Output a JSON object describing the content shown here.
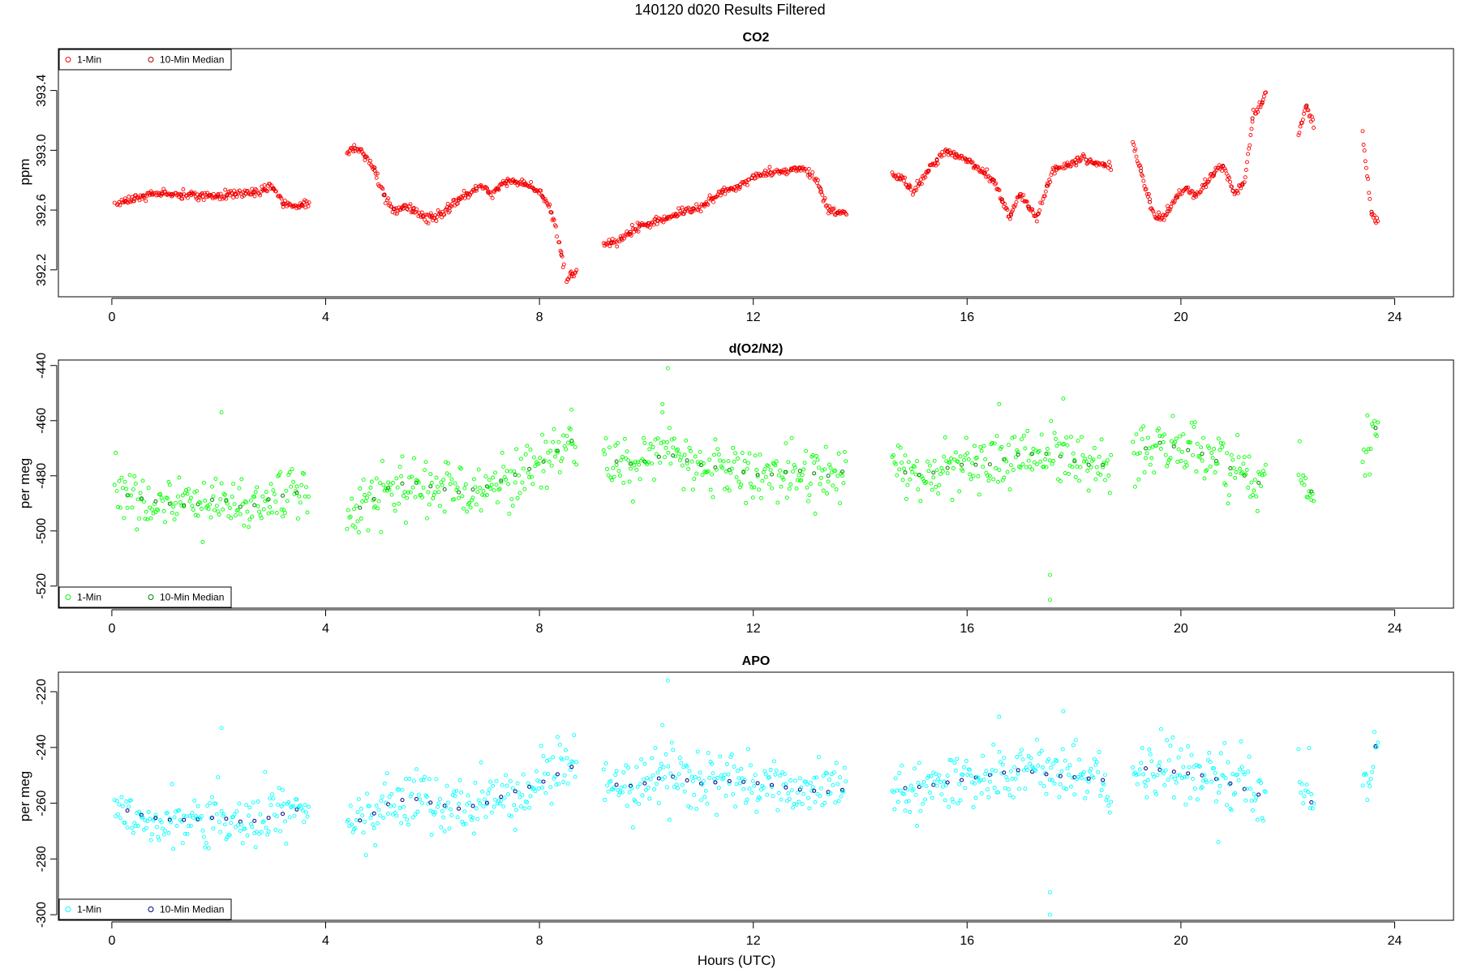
{
  "figure": {
    "title": "140120   d020   Results Filtered",
    "xlabel": "Hours (UTC)"
  },
  "chart_data": [
    {
      "type": "scatter",
      "title": "CO2",
      "xlabel": "",
      "ylabel": "ppm",
      "xlim": [
        -1.0,
        25.1
      ],
      "ylim": [
        392.02,
        393.68
      ],
      "xticks": [
        0,
        4,
        8,
        12,
        16,
        20,
        24
      ],
      "yticks": [
        392.2,
        392.6,
        393.0,
        393.4
      ],
      "ytick_labels": [
        "392.2",
        "392.6",
        "393.0",
        "393.4"
      ],
      "legend": {
        "placement": "top-left",
        "entries": [
          "1-Min",
          "10-Min Median"
        ]
      },
      "colors": {
        "one_min": "#ff0000",
        "median": "#b30000"
      },
      "noise": 0.015,
      "segments": [
        {
          "x": [
            0.05,
            0.3,
            0.6,
            1.0,
            1.5,
            2.0,
            2.5,
            2.8,
            3.0,
            3.2,
            3.5,
            3.7
          ],
          "y": [
            392.64,
            392.66,
            392.7,
            392.71,
            392.7,
            392.7,
            392.71,
            392.73,
            392.76,
            392.64,
            392.62,
            392.68
          ]
        },
        {
          "x": [
            4.4,
            4.6,
            4.9,
            5.1,
            5.3,
            5.6,
            5.9,
            6.2,
            6.5,
            6.9,
            7.1,
            7.4,
            7.7,
            8.0,
            8.2,
            8.35,
            8.5,
            8.7
          ],
          "y": [
            392.99,
            393.02,
            392.88,
            392.7,
            392.6,
            392.62,
            392.54,
            392.58,
            392.67,
            392.76,
            392.7,
            392.8,
            392.78,
            392.72,
            392.62,
            392.4,
            392.14,
            392.2
          ]
        },
        {
          "x": [
            9.2,
            9.5,
            9.8,
            10.1,
            10.4,
            10.8,
            11.1,
            11.4,
            11.7,
            12.0,
            12.3,
            12.6,
            12.9,
            13.2,
            13.4,
            13.6,
            13.75
          ],
          "y": [
            392.36,
            392.4,
            392.48,
            392.52,
            392.55,
            392.6,
            392.64,
            392.72,
            392.76,
            392.82,
            392.85,
            392.86,
            392.88,
            392.8,
            392.6,
            392.58,
            392.58
          ]
        },
        {
          "x": [
            14.6,
            14.8,
            15.0,
            15.3,
            15.6,
            15.9,
            16.2,
            16.5,
            16.8,
            17.0,
            17.3,
            17.6,
            17.9,
            18.2,
            18.5,
            18.7
          ],
          "y": [
            392.85,
            392.8,
            392.72,
            392.88,
            393.0,
            392.96,
            392.88,
            392.8,
            392.55,
            392.7,
            392.55,
            392.86,
            392.9,
            392.94,
            392.9,
            392.9
          ]
        },
        {
          "x": [
            19.1,
            19.3,
            19.5,
            19.7,
            19.9,
            20.1,
            20.3,
            20.6,
            20.8,
            21.0,
            21.2,
            21.35,
            21.5,
            21.6
          ],
          "y": [
            393.05,
            392.8,
            392.55,
            392.56,
            392.68,
            392.75,
            392.7,
            392.84,
            392.9,
            392.7,
            392.8,
            393.25,
            393.3,
            393.4
          ]
        },
        {
          "x": [
            22.2,
            22.35,
            22.5
          ],
          "y": [
            393.1,
            393.3,
            393.15
          ]
        },
        {
          "x": [
            23.4,
            23.55,
            23.7
          ],
          "y": [
            393.1,
            392.6,
            392.5
          ]
        }
      ]
    },
    {
      "type": "scatter",
      "title": "d(O2/N2)",
      "xlabel": "",
      "ylabel": "per meg",
      "xlim": [
        -1.0,
        25.1
      ],
      "ylim": [
        -528.0,
        -438.0
      ],
      "xticks": [
        0,
        4,
        8,
        12,
        16,
        20,
        24
      ],
      "yticks": [
        -520,
        -500,
        -480,
        -460,
        -440
      ],
      "ytick_labels": [
        "-520",
        "-500",
        "-480",
        "-460",
        "-440"
      ],
      "legend": {
        "placement": "bottom-left",
        "entries": [
          "1-Min",
          "10-Min Median"
        ]
      },
      "colors": {
        "one_min": "#00ff00",
        "median": "#008000"
      },
      "noise": 5,
      "segments": [
        {
          "x": [
            0.05,
            0.5,
            1.0,
            1.5,
            2.0,
            2.5,
            3.0,
            3.5,
            3.7
          ],
          "y": [
            -486,
            -488,
            -490,
            -491,
            -488,
            -492,
            -488,
            -486,
            -490
          ]
        },
        {
          "x": [
            4.4,
            4.8,
            5.2,
            5.6,
            6.0,
            6.5,
            7.0,
            7.5,
            8.0,
            8.4,
            8.7
          ],
          "y": [
            -494,
            -490,
            -484,
            -482,
            -484,
            -486,
            -484,
            -480,
            -476,
            -470,
            -466
          ]
        },
        {
          "x": [
            9.2,
            9.8,
            10.4,
            11.0,
            11.6,
            12.2,
            12.8,
            13.4,
            13.75
          ],
          "y": [
            -474,
            -476,
            -472,
            -476,
            -478,
            -480,
            -478,
            -480,
            -478
          ]
        },
        {
          "x": [
            14.6,
            15.2,
            15.8,
            16.4,
            17.0,
            17.6,
            18.2,
            18.7
          ],
          "y": [
            -478,
            -480,
            -476,
            -476,
            -472,
            -472,
            -476,
            -476
          ]
        },
        {
          "x": [
            19.1,
            19.6,
            20.0,
            20.4,
            20.8,
            21.2,
            21.6
          ],
          "y": [
            -472,
            -468,
            -470,
            -472,
            -476,
            -480,
            -484
          ]
        },
        {
          "x": [
            22.2,
            22.35,
            22.5
          ],
          "y": [
            -476,
            -482,
            -488
          ]
        },
        {
          "x": [
            23.4,
            23.55,
            23.7
          ],
          "y": [
            -468,
            -470,
            -458
          ]
        }
      ],
      "outliers": {
        "x": [
          10.4,
          17.55,
          17.55,
          17.8,
          2.05,
          8.6,
          10.3,
          16.6
        ],
        "y": [
          -441,
          -516,
          -525,
          -452,
          -457,
          -456,
          -454,
          -454
        ]
      }
    },
    {
      "type": "scatter",
      "title": "APO",
      "xlabel": "Hours (UTC)",
      "ylabel": "per meg",
      "xlim": [
        -1.0,
        25.1
      ],
      "ylim": [
        -302.0,
        -213.0
      ],
      "xticks": [
        0,
        4,
        8,
        12,
        16,
        20,
        24
      ],
      "yticks": [
        -300,
        -280,
        -260,
        -240,
        -220
      ],
      "ytick_labels": [
        "-300",
        "-280",
        "-260",
        "-240",
        "-220"
      ],
      "legend": {
        "placement": "bottom-left",
        "entries": [
          "1-Min",
          "10-Min Median"
        ]
      },
      "colors": {
        "one_min": "#00ffff",
        "median": "#000080"
      },
      "noise": 5,
      "segments": [
        {
          "x": [
            0.05,
            0.5,
            1.0,
            1.5,
            2.0,
            2.5,
            3.0,
            3.5,
            3.7
          ],
          "y": [
            -261,
            -264,
            -266,
            -266,
            -265,
            -267,
            -265,
            -262,
            -265
          ]
        },
        {
          "x": [
            4.4,
            4.8,
            5.2,
            5.6,
            6.0,
            6.5,
            7.0,
            7.5,
            8.0,
            8.4,
            8.7
          ],
          "y": [
            -268,
            -265,
            -260,
            -258,
            -260,
            -262,
            -260,
            -256,
            -253,
            -249,
            -246
          ]
        },
        {
          "x": [
            9.2,
            9.8,
            10.4,
            11.0,
            11.6,
            12.2,
            12.8,
            13.4,
            13.75
          ],
          "y": [
            -253,
            -254,
            -250,
            -253,
            -252,
            -253,
            -255,
            -256,
            -255
          ]
        },
        {
          "x": [
            14.6,
            15.2,
            15.8,
            16.4,
            17.0,
            17.6,
            18.2,
            18.7
          ],
          "y": [
            -255,
            -254,
            -252,
            -250,
            -248,
            -250,
            -251,
            -252
          ]
        },
        {
          "x": [
            19.1,
            19.6,
            20.0,
            20.4,
            20.8,
            21.2,
            21.6
          ],
          "y": [
            -247,
            -248,
            -249,
            -250,
            -252,
            -255,
            -258
          ]
        },
        {
          "x": [
            22.2,
            22.35,
            22.5
          ],
          "y": [
            -250,
            -256,
            -262
          ]
        },
        {
          "x": [
            23.4,
            23.55,
            23.7
          ],
          "y": [
            -248,
            -250,
            -233
          ]
        }
      ],
      "outliers": {
        "x": [
          10.4,
          17.55,
          17.55,
          17.8,
          2.05,
          10.3,
          16.6,
          20.7
        ],
        "y": [
          -216,
          -292,
          -300,
          -227,
          -233,
          -232,
          -229,
          -274
        ]
      }
    }
  ]
}
